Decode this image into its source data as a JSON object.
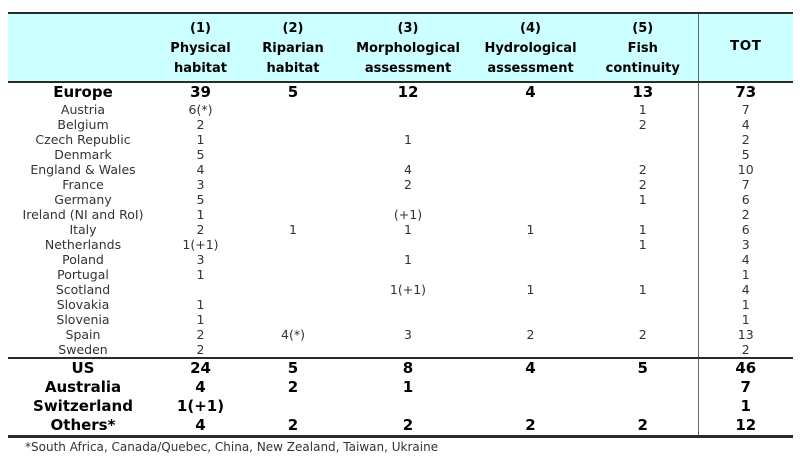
{
  "header": {
    "corner": "",
    "columns": [
      {
        "number": "(1)",
        "label_line1": "Physical",
        "label_line2": "habitat"
      },
      {
        "number": "(2)",
        "label_line1": "Riparian",
        "label_line2": "habitat"
      },
      {
        "number": "(3)",
        "label_line1": "Morphological",
        "label_line2": "assessment"
      },
      {
        "number": "(4)",
        "label_line1": "Hydrological",
        "label_line2": "assessment"
      },
      {
        "number": "(5)",
        "label_line1": "Fish",
        "label_line2": "continuity"
      }
    ],
    "total_label": "TOT"
  },
  "rows": [
    {
      "label": "Europe",
      "summary": true,
      "separator": false,
      "values": [
        "39",
        "5",
        "12",
        "4",
        "13"
      ],
      "total": "73"
    },
    {
      "label": "Austria",
      "summary": false,
      "separator": false,
      "values": [
        "6(*)",
        "",
        "",
        "",
        "1"
      ],
      "total": "7"
    },
    {
      "label": "Belgium",
      "summary": false,
      "separator": false,
      "values": [
        "2",
        "",
        "",
        "",
        "2"
      ],
      "total": "4"
    },
    {
      "label": "Czech Republic",
      "summary": false,
      "separator": false,
      "values": [
        "1",
        "",
        "1",
        "",
        ""
      ],
      "total": "2"
    },
    {
      "label": "Denmark",
      "summary": false,
      "separator": false,
      "values": [
        "5",
        "",
        "",
        "",
        ""
      ],
      "total": "5"
    },
    {
      "label": "England & Wales",
      "summary": false,
      "separator": false,
      "values": [
        "4",
        "",
        "4",
        "",
        "2"
      ],
      "total": "10"
    },
    {
      "label": "France",
      "summary": false,
      "separator": false,
      "values": [
        "3",
        "",
        "2",
        "",
        "2"
      ],
      "total": "7"
    },
    {
      "label": "Germany",
      "summary": false,
      "separator": false,
      "values": [
        "5",
        "",
        "",
        "",
        "1"
      ],
      "total": "6"
    },
    {
      "label": "Ireland (NI and RoI)",
      "summary": false,
      "separator": false,
      "values": [
        "1",
        "",
        "(+1)",
        "",
        ""
      ],
      "total": "2"
    },
    {
      "label": "Italy",
      "summary": false,
      "separator": false,
      "values": [
        "2",
        "1",
        "1",
        "1",
        "1"
      ],
      "total": "6"
    },
    {
      "label": "Netherlands",
      "summary": false,
      "separator": false,
      "values": [
        "1(+1)",
        "",
        "",
        "",
        "1"
      ],
      "total": "3"
    },
    {
      "label": "Poland",
      "summary": false,
      "separator": false,
      "values": [
        "3",
        "",
        "1",
        "",
        ""
      ],
      "total": "4"
    },
    {
      "label": "Portugal",
      "summary": false,
      "separator": false,
      "values": [
        "1",
        "",
        "",
        "",
        ""
      ],
      "total": "1"
    },
    {
      "label": "Scotland",
      "summary": false,
      "separator": false,
      "values": [
        "",
        "",
        "1(+1)",
        "1",
        "1"
      ],
      "total": "4"
    },
    {
      "label": "Slovakia",
      "summary": false,
      "separator": false,
      "values": [
        "1",
        "",
        "",
        "",
        ""
      ],
      "total": "1"
    },
    {
      "label": "Slovenia",
      "summary": false,
      "separator": false,
      "values": [
        "1",
        "",
        "",
        "",
        ""
      ],
      "total": "1"
    },
    {
      "label": "Spain",
      "summary": false,
      "separator": false,
      "values": [
        "2",
        "4(*)",
        "3",
        "2",
        "2"
      ],
      "total": "13"
    },
    {
      "label": "Sweden",
      "summary": false,
      "separator": false,
      "values": [
        "2",
        "",
        "",
        "",
        ""
      ],
      "total": "2"
    },
    {
      "label": "US",
      "summary": true,
      "separator": true,
      "values": [
        "24",
        "5",
        "8",
        "4",
        "5"
      ],
      "total": "46"
    },
    {
      "label": "Australia",
      "summary": true,
      "separator": false,
      "values": [
        "4",
        "2",
        "1",
        "",
        ""
      ],
      "total": "7"
    },
    {
      "label": "Switzerland",
      "summary": true,
      "separator": false,
      "values": [
        "1(+1)",
        "",
        "",
        "",
        ""
      ],
      "total": "1"
    },
    {
      "label": "Others*",
      "summary": true,
      "separator": false,
      "values": [
        "4",
        "2",
        "2",
        "2",
        "2"
      ],
      "total": "12"
    }
  ],
  "footnote": "*South Africa, Canada/Quebec, China, New Zealand, Taiwan, Ukraine",
  "colors": {
    "header_bg": "#ccffff",
    "border": "#2b2b2b",
    "tot_divider": "#666666",
    "body_text": "#333333",
    "summary_text": "#000000"
  }
}
